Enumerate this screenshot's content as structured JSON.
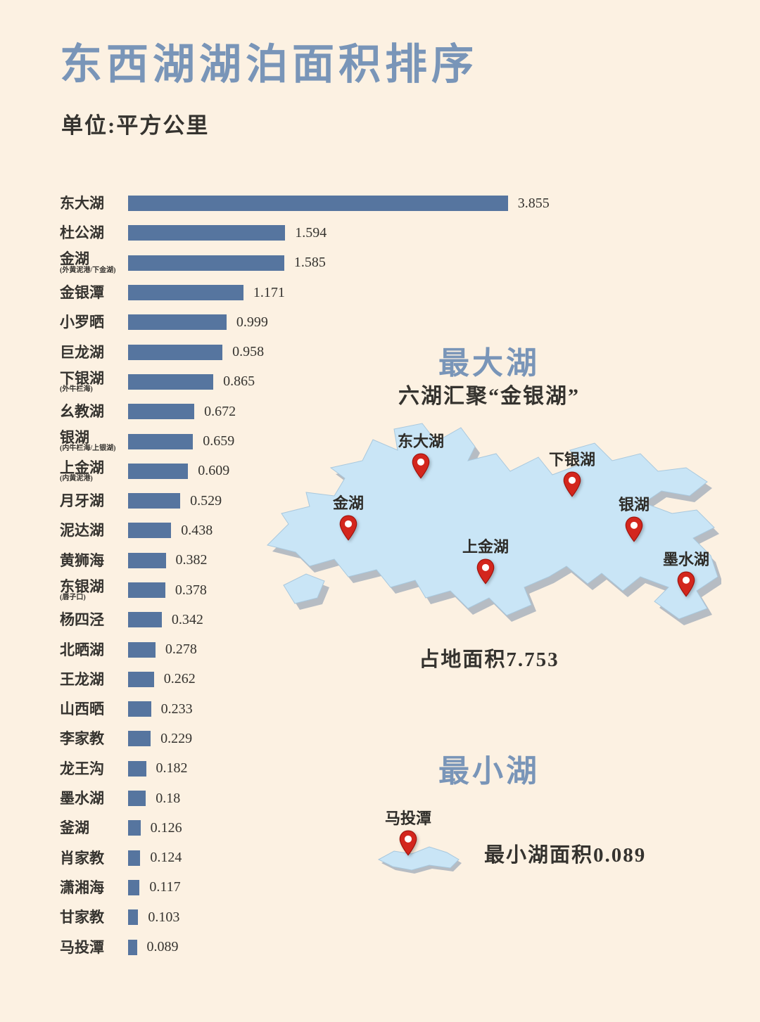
{
  "page": {
    "title": "东西湖湖泊面积排序",
    "subtitle": "单位:平方公里"
  },
  "chart_data": {
    "type": "bar",
    "orientation": "horizontal",
    "title": "东西湖湖泊面积排序",
    "unit_label": "单位:平方公里",
    "xlim": [
      0,
      4
    ],
    "bar_color": "#56759f",
    "categories": [
      "东大湖",
      "杜公湖",
      "金湖",
      "金银潭",
      "小罗晒",
      "巨龙湖",
      "下银湖",
      "幺教湖",
      "银湖",
      "上金湖",
      "月牙湖",
      "泥达湖",
      "黄狮海",
      "东银湖",
      "杨四泾",
      "北晒湖",
      "王龙湖",
      "山西晒",
      "李家教",
      "龙王沟",
      "墨水湖",
      "釜湖",
      "肖家教",
      "潇湘海",
      "甘家教",
      "马投潭"
    ],
    "sublabels": [
      null,
      null,
      "(外黄泥港/下金湖)",
      null,
      null,
      null,
      "(外牛栏海)",
      null,
      "(内牛栏海/上银湖)",
      "(内黄泥港)",
      null,
      null,
      null,
      "(唇子口)",
      null,
      null,
      null,
      null,
      null,
      null,
      null,
      null,
      null,
      null,
      null,
      null
    ],
    "values": [
      "3.855",
      "1.594",
      "1.585",
      "1.171",
      "0.999",
      "0.958",
      "0.865",
      "0.672",
      "0.659",
      "0.609",
      "0.529",
      "0.438",
      "0.382",
      "0.378",
      "0.342",
      "0.278",
      "0.262",
      "0.233",
      "0.229",
      "0.182",
      "0.18",
      "0.126",
      "0.124",
      "0.117",
      "0.103",
      "0.089"
    ]
  },
  "largest_lake": {
    "heading": "最大湖",
    "subheading": "六湖汇聚“金银湖”",
    "pins": [
      "东大湖",
      "下银湖",
      "金湖",
      "银湖",
      "上金湖",
      "墨水湖"
    ],
    "area_label": "占地面积7.753"
  },
  "smallest_lake": {
    "heading": "最小湖",
    "pin": "马投潭",
    "area_label": "最小湖面积0.089"
  },
  "colors": {
    "background": "#fcf1e2",
    "bar": "#56759f",
    "heading_blue": "#7995b8",
    "text_dark": "#35332f",
    "map_fill": "#c9e5f6",
    "map_shadow": "#b6bcc3",
    "pin_red": "#d3261d"
  }
}
